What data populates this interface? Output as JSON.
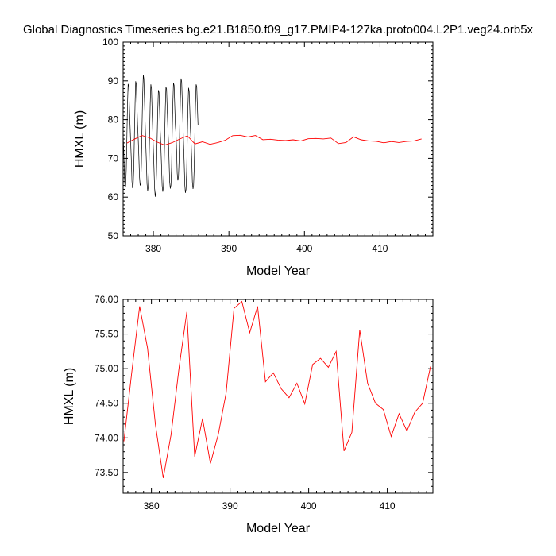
{
  "chart_data": [
    {
      "type": "line",
      "title": "Global Diagnostics Timeseries bg.e21.B1850.f09_g17.PMIP4-127ka.proto004.L2P1.veg24.orb5x",
      "xlabel": "Model Year",
      "ylabel": "HMXL (m)",
      "xlim": [
        376,
        417
      ],
      "ylim": [
        50,
        100
      ],
      "xticks": [
        380,
        390,
        400,
        410
      ],
      "yticks": [
        50,
        60,
        70,
        80,
        90,
        100
      ],
      "ytick_labels": [
        "50",
        "60",
        "70",
        "80",
        "90",
        "100"
      ],
      "series": [
        {
          "kind": "monthly",
          "color": "#000000",
          "x_start": 376,
          "x_step": 0.0833,
          "values": [
            76.3,
            71.8,
            65.6,
            62.5,
            62.9,
            67.3,
            76.1,
            83.8,
            89.2,
            88.6,
            83.4,
            78.7,
            74.3,
            69.7,
            64.1,
            62.3,
            63.2,
            67.8,
            76.8,
            84.6,
            89.9,
            89.2,
            83.8,
            78.5,
            75.1,
            70.6,
            65.3,
            63.0,
            63.5,
            68.5,
            78.2,
            86.4,
            91.6,
            90.5,
            85.2,
            79.4,
            74.0,
            69.0,
            63.4,
            61.6,
            62.7,
            67.1,
            75.9,
            84.0,
            89.1,
            88.0,
            82.9,
            77.7,
            72.7,
            67.8,
            62.4,
            60.1,
            61.4,
            66.2,
            74.8,
            82.4,
            87.6,
            87.0,
            82.0,
            77.1,
            73.3,
            68.4,
            63.0,
            61.4,
            62.5,
            66.9,
            75.4,
            82.9,
            88.4,
            87.9,
            82.8,
            77.9,
            74.3,
            69.6,
            64.0,
            62.2,
            63.1,
            67.6,
            76.5,
            84.2,
            89.5,
            88.8,
            83.5,
            78.4,
            76.1,
            71.5,
            66.1,
            64.3,
            65.3,
            69.9,
            78.6,
            85.4,
            90.6,
            89.8,
            84.5,
            79.3,
            73.6,
            68.8,
            63.0,
            61.1,
            62.0,
            66.6,
            75.2,
            83.2,
            88.2,
            87.3,
            82.3,
            77.2,
            74.2,
            69.4,
            63.9,
            62.1,
            62.9,
            67.5,
            76.2,
            83.6,
            89.1,
            88.5,
            83.4,
            78.5
          ]
        },
        {
          "kind": "annual",
          "color": "#ff0000",
          "x": [
            376.5,
            377.5,
            378.5,
            379.5,
            380.5,
            381.5,
            382.5,
            383.5,
            384.5,
            385.5,
            386.5,
            387.5,
            388.5,
            389.5,
            390.5,
            391.5,
            392.5,
            393.5,
            394.5,
            395.5,
            396.5,
            397.5,
            398.5,
            399.5,
            400.5,
            401.5,
            402.5,
            403.5,
            404.5,
            405.5,
            406.5,
            407.5,
            408.5,
            409.5,
            410.5,
            411.5,
            412.5,
            413.5,
            414.5,
            415.5
          ],
          "values": [
            73.95,
            74.95,
            75.9,
            75.3,
            74.2,
            73.42,
            74.05,
            75.0,
            75.82,
            73.73,
            74.28,
            73.63,
            74.05,
            74.65,
            75.87,
            75.97,
            75.52,
            75.9,
            74.81,
            74.94,
            74.71,
            74.58,
            74.79,
            74.49,
            75.06,
            75.15,
            75.02,
            75.25,
            73.81,
            74.08,
            75.56,
            74.79,
            74.5,
            74.41,
            74.02,
            74.35,
            74.1,
            74.37,
            74.5,
            75.03
          ]
        }
      ]
    },
    {
      "type": "line",
      "xlabel": "Model Year",
      "ylabel": "HMXL (m)",
      "xlim": [
        376.4,
        415.8
      ],
      "ylim": [
        73.2,
        76.0
      ],
      "xticks": [
        380,
        390,
        400,
        410
      ],
      "yticks": [
        73.5,
        74.0,
        74.5,
        75.0,
        75.5,
        76.0
      ],
      "ytick_labels": [
        "73.50",
        "74.00",
        "74.50",
        "75.00",
        "75.50",
        "76.00"
      ],
      "series": [
        {
          "kind": "annual",
          "color": "#ff0000",
          "x": [
            376.5,
            377.5,
            378.5,
            379.5,
            380.5,
            381.5,
            382.5,
            383.5,
            384.5,
            385.5,
            386.5,
            387.5,
            388.5,
            389.5,
            390.5,
            391.5,
            392.5,
            393.5,
            394.5,
            395.5,
            396.5,
            397.5,
            398.5,
            399.5,
            400.5,
            401.5,
            402.5,
            403.5,
            404.5,
            405.5,
            406.5,
            407.5,
            408.5,
            409.5,
            410.5,
            411.5,
            412.5,
            413.5,
            414.5,
            415.5
          ],
          "values": [
            73.95,
            74.95,
            75.9,
            75.3,
            74.2,
            73.42,
            74.05,
            75.0,
            75.82,
            73.73,
            74.28,
            73.63,
            74.05,
            74.65,
            75.87,
            75.97,
            75.52,
            75.9,
            74.81,
            74.94,
            74.71,
            74.58,
            74.79,
            74.49,
            75.06,
            75.15,
            75.02,
            75.25,
            73.81,
            74.08,
            75.56,
            74.79,
            74.5,
            74.41,
            74.02,
            74.35,
            74.1,
            74.37,
            74.5,
            75.03
          ]
        }
      ]
    }
  ]
}
